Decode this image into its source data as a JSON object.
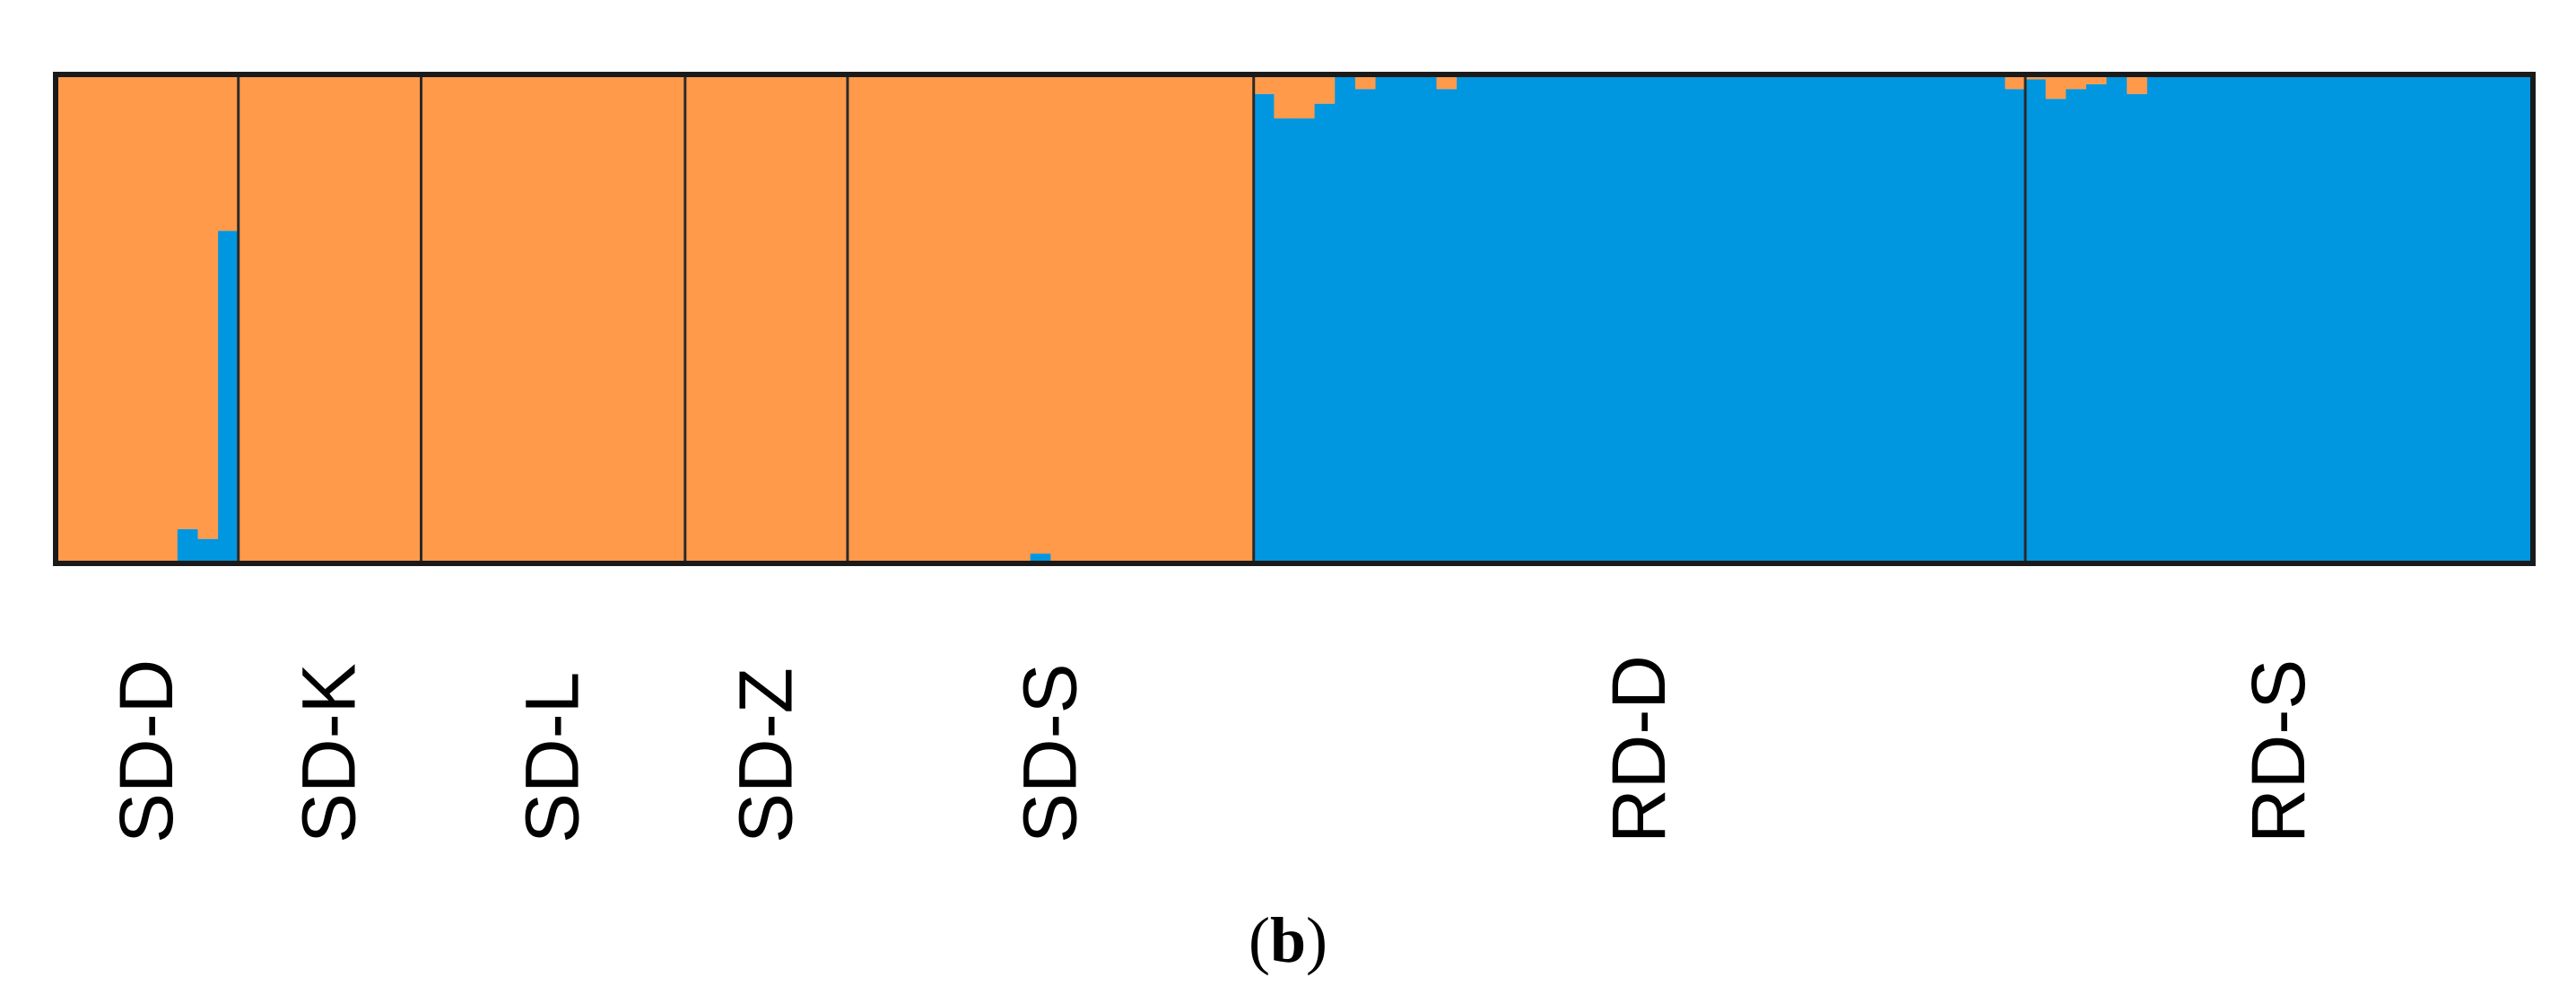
{
  "figure": {
    "panel_open": "(",
    "panel_letter": "b",
    "panel_close": ")"
  },
  "colors": {
    "cluster1": "#FF9A4A",
    "cluster2": "#0096E0",
    "border": "#1a1a1a",
    "divider": "#2a2a2a"
  },
  "chart_data": {
    "type": "bar",
    "stacked": true,
    "ylim": [
      0,
      1
    ],
    "grid": false,
    "legend": "none",
    "populations": [
      {
        "label": "SD-D",
        "n": 9,
        "cluster2": [
          0,
          0,
          0,
          0,
          0,
          0,
          0.07,
          0.05,
          0.68
        ]
      },
      {
        "label": "SD-K",
        "n": 9,
        "cluster2": [
          0,
          0,
          0,
          0,
          0,
          0,
          0,
          0,
          0
        ]
      },
      {
        "label": "SD-L",
        "n": 13,
        "cluster2": [
          0,
          0,
          0,
          0,
          0,
          0,
          0,
          0,
          0,
          0,
          0,
          0,
          0
        ]
      },
      {
        "label": "SD-Z",
        "n": 8,
        "cluster2": [
          0,
          0,
          0,
          0,
          0,
          0,
          0,
          0
        ]
      },
      {
        "label": "SD-S",
        "n": 20,
        "cluster2": [
          0,
          0,
          0,
          0,
          0,
          0,
          0,
          0,
          0,
          0.02,
          0,
          0,
          0,
          0,
          0,
          0,
          0,
          0,
          0,
          0
        ]
      },
      {
        "label": "RD-D",
        "n": 38,
        "cluster2": [
          0.96,
          0.91,
          0.91,
          0.94,
          1,
          0.97,
          1,
          1,
          1,
          0.97,
          1,
          1,
          1,
          1,
          1,
          1,
          1,
          1,
          1,
          1,
          1,
          1,
          1,
          1,
          1,
          1,
          1,
          1,
          1,
          1,
          1,
          1,
          1,
          1,
          1,
          1,
          1,
          0.97
        ]
      },
      {
        "label": "RD-S",
        "n": 25,
        "cluster2": [
          0.99,
          0.95,
          0.97,
          0.98,
          1,
          0.96,
          1,
          1,
          1,
          1,
          1,
          1,
          1,
          1,
          1,
          1,
          1,
          1,
          1,
          1,
          1,
          1,
          1,
          1,
          1
        ]
      }
    ]
  }
}
